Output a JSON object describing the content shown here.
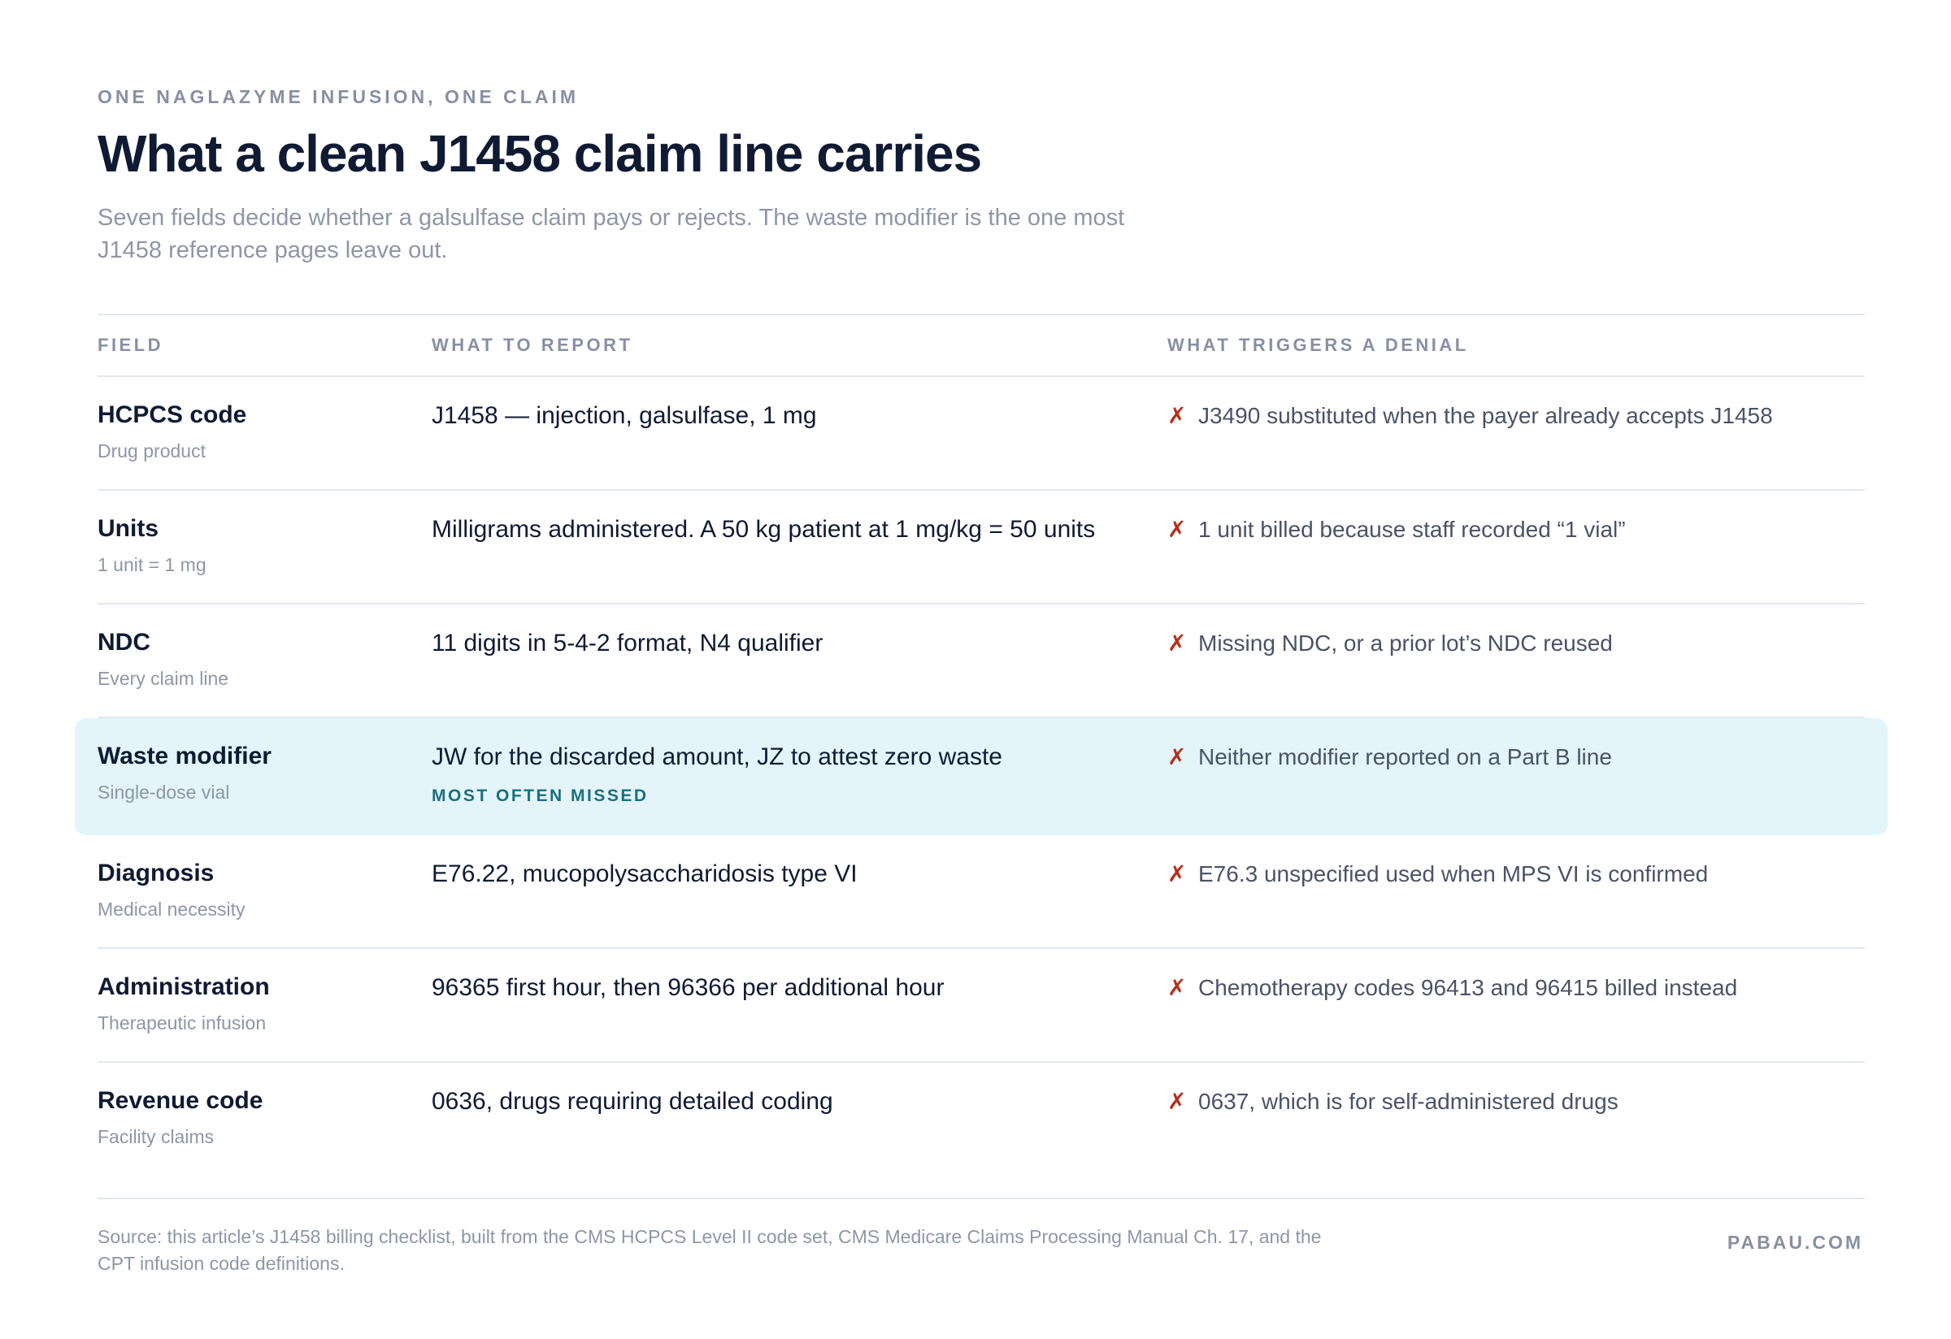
{
  "header": {
    "eyebrow": "ONE NAGLAZYME INFUSION, ONE CLAIM",
    "title": "What a clean J1458 claim line carries",
    "subtitle": "Seven fields decide whether a galsulfase claim pays or rejects. The waste modifier is the one most J1458 reference pages leave out."
  },
  "table": {
    "columns": [
      "FIELD",
      "WHAT TO REPORT",
      "WHAT TRIGGERS A DENIAL"
    ],
    "rows": [
      {
        "field": "HCPCS code",
        "sub": "Drug product",
        "report": "J1458 — injection, galsulfase, 1 mg",
        "tag": "",
        "denial": "J3490 substituted when the payer already accepts J1458",
        "highlight": false
      },
      {
        "field": "Units",
        "sub": "1 unit = 1 mg",
        "report": "Milligrams administered. A 50 kg patient at 1 mg/kg = 50 units",
        "tag": "",
        "denial": "1 unit billed because staff recorded “1 vial”",
        "highlight": false
      },
      {
        "field": "NDC",
        "sub": "Every claim line",
        "report": "11 digits in 5-4-2 format, N4 qualifier",
        "tag": "",
        "denial": "Missing NDC, or a prior lot’s NDC reused",
        "highlight": false
      },
      {
        "field": "Waste modifier",
        "sub": "Single-dose vial",
        "report": "JW for the discarded amount, JZ to attest zero waste",
        "tag": "MOST OFTEN MISSED",
        "denial": "Neither modifier reported on a Part B line",
        "highlight": true
      },
      {
        "field": "Diagnosis",
        "sub": "Medical necessity",
        "report": "E76.22, mucopolysaccharidosis type VI",
        "tag": "",
        "denial": "E76.3 unspecified used when MPS VI is confirmed",
        "highlight": false
      },
      {
        "field": "Administration",
        "sub": "Therapeutic infusion",
        "report": "96365 first hour, then 96366 per additional hour",
        "tag": "",
        "denial": "Chemotherapy codes 96413 and 96415 billed instead",
        "highlight": false
      },
      {
        "field": "Revenue code",
        "sub": "Facility claims",
        "report": "0636, drugs requiring detailed coding",
        "tag": "",
        "denial": "0637, which is for self-administered drugs",
        "highlight": false
      }
    ],
    "denial_icon": "x-mark-icon",
    "denial_icon_glyph": "✗",
    "denial_icon_color": "#b4301f",
    "highlight_color": "#e3f5fa"
  },
  "footer": {
    "source": "Source: this article’s J1458 billing checklist, built from the CMS HCPCS Level II code set, CMS Medicare Claims Processing Manual Ch. 17, and the CPT infusion code definitions.",
    "brand": "PABAU.COM"
  }
}
